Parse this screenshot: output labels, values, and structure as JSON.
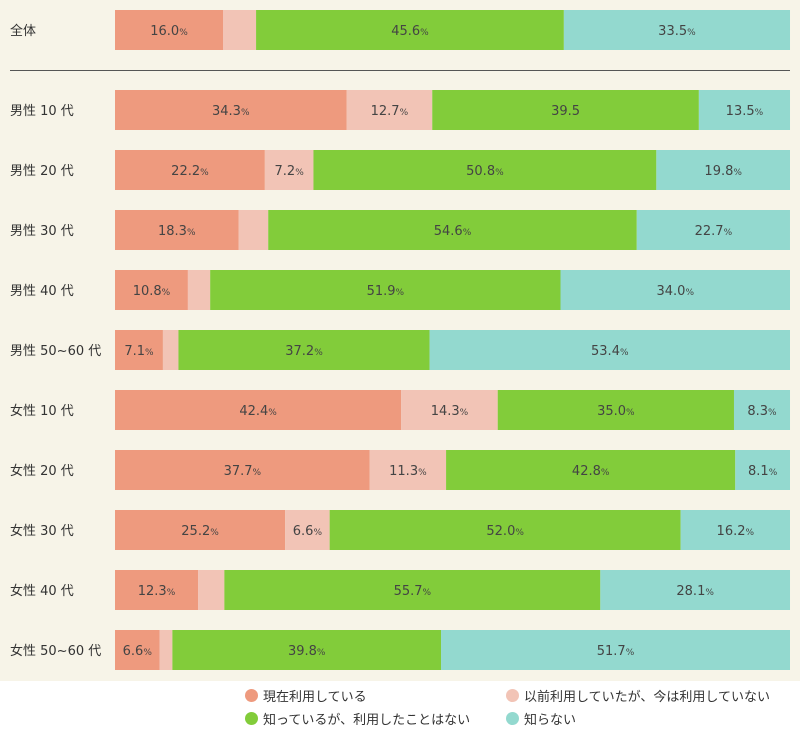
{
  "chart_data": {
    "type": "bar",
    "orientation": "horizontal-stacked-100",
    "categories": [
      "全体",
      "男性 10 代",
      "男性 20 代",
      "男性 30 代",
      "男性 40 代",
      "男性 50~60 代",
      "女性 10 代",
      "女性 20 代",
      "女性 30 代",
      "女性 40 代",
      "女性 50~60 代"
    ],
    "series": [
      {
        "name": "現在利用している",
        "color": "#ee9a7e",
        "values": [
          16.0,
          34.3,
          22.2,
          18.3,
          10.8,
          7.1,
          42.4,
          37.7,
          25.2,
          12.3,
          6.6
        ],
        "labels": [
          "16.0",
          "34.3",
          "22.2",
          "18.3",
          "10.8",
          "7.1",
          "42.4",
          "37.7",
          "25.2",
          "12.3",
          "6.6"
        ],
        "units": [
          "%",
          "%",
          "%",
          "%",
          "%",
          "%",
          "%",
          "%",
          "%",
          "%",
          "%"
        ]
      },
      {
        "name": "以前利用していたが、今は利用していない",
        "color": "#f2c4b6",
        "values": [
          4.9,
          12.7,
          7.2,
          4.4,
          3.3,
          2.3,
          14.3,
          11.3,
          6.6,
          3.9,
          1.9
        ],
        "labels": [
          "",
          "12.7",
          "7.2",
          "",
          "",
          "",
          "14.3",
          "11.3",
          "6.6",
          "",
          ""
        ],
        "units": [
          "",
          "%",
          "%",
          "",
          "",
          "",
          "%",
          "%",
          "%",
          "",
          ""
        ]
      },
      {
        "name": "知っているが、利用したことはない",
        "color": "#82cc3a",
        "values": [
          45.6,
          39.5,
          50.8,
          54.6,
          51.9,
          37.2,
          35.0,
          42.8,
          52.0,
          55.7,
          39.8
        ],
        "labels": [
          "45.6",
          "39.5",
          "50.8",
          "54.6",
          "51.9",
          "37.2",
          "35.0",
          "42.8",
          "52.0",
          "55.7",
          "39.8"
        ],
        "units": [
          "%",
          "",
          "%",
          "%",
          "%",
          "%",
          "%",
          "%",
          "%",
          "%",
          "%"
        ]
      },
      {
        "name": "知らない",
        "color": "#93d9cf",
        "values": [
          33.5,
          13.5,
          19.8,
          22.7,
          34.0,
          53.4,
          8.3,
          8.1,
          16.2,
          28.1,
          51.7
        ],
        "labels": [
          "33.5",
          "13.5",
          "19.8",
          "22.7",
          "34.0",
          "53.4",
          "8.3",
          "8.1",
          "16.2",
          "28.1",
          "51.7"
        ],
        "units": [
          "%",
          "%",
          "%",
          "%",
          "%",
          "%",
          "%",
          "%",
          "%",
          "%",
          "%"
        ]
      }
    ],
    "xlim": [
      0,
      100
    ],
    "legend_position": "bottom"
  },
  "colors": {
    "background": "#f7f4e8",
    "separator": "#555555"
  }
}
